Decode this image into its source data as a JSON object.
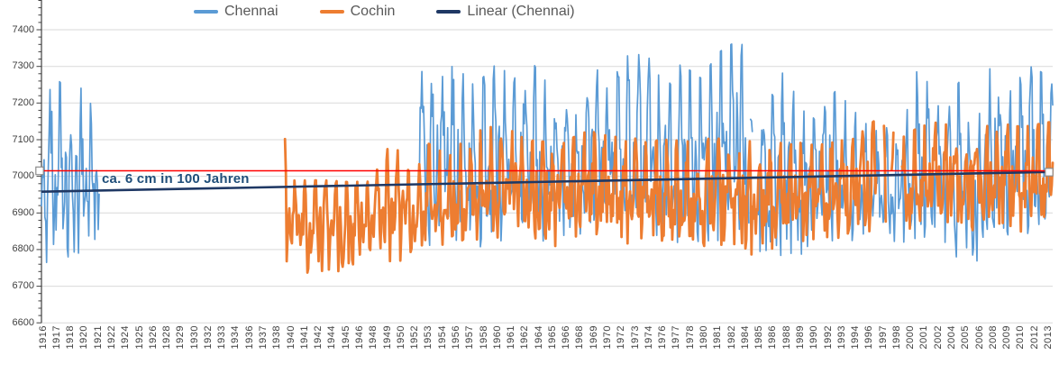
{
  "chart": {
    "legend": [
      {
        "label": "Chennai",
        "color": "#5B9BD5"
      },
      {
        "label": "Cochin",
        "color": "#ED7D31"
      },
      {
        "label": "Linear (Chennai)",
        "color": "#1F3864"
      }
    ],
    "annotation": {
      "text": "ca. 6 cm in 100 Jahren",
      "color": "#1F4E79"
    },
    "y_axis": {
      "ticks": [
        "7400",
        "7300",
        "7200",
        "7100",
        "7000",
        "6900",
        "6800",
        "6700",
        "6600"
      ]
    },
    "x_axis": {
      "labels": [
        "1916",
        "1917",
        "1918",
        "1920",
        "1921",
        "1922",
        "1924",
        "1925",
        "1926",
        "1928",
        "1929",
        "1930",
        "1932",
        "1933",
        "1934",
        "1936",
        "1937",
        "1938",
        "1940",
        "1941",
        "1942",
        "1944",
        "1945",
        "1946",
        "1948",
        "1949",
        "1950",
        "1952",
        "1953",
        "1954",
        "1956",
        "1957",
        "1958",
        "1960",
        "1961",
        "1962",
        "1964",
        "1965",
        "1966",
        "1968",
        "1969",
        "1970",
        "1972",
        "1973",
        "1974",
        "1976",
        "1977",
        "1978",
        "1980",
        "1981",
        "1982",
        "1984",
        "1985",
        "1986",
        "1988",
        "1989",
        "1990",
        "1992",
        "1993",
        "1994",
        "1996",
        "1997",
        "1998",
        "2000",
        "2001",
        "2002",
        "2004",
        "2005",
        "2006",
        "2008",
        "2009",
        "2010",
        "2012",
        "2013"
      ]
    }
  },
  "chart_data": {
    "type": "line",
    "title": "",
    "xlabel": "",
    "ylabel": "",
    "x_unit": "monthly",
    "x_start": "1916-01",
    "x_end": "2013-12",
    "ylim": [
      6600,
      7480
    ],
    "y_tick_values": [
      6600,
      6700,
      6800,
      6900,
      7000,
      7100,
      7200,
      7300,
      7400
    ],
    "grid": "horizontal",
    "legend_position": "top",
    "annotation": {
      "text": "ca. 6 cm in 100 Jahren"
    },
    "reference_line": {
      "value": 7015,
      "color": "#FF0000",
      "has_end_handles": true
    },
    "trend_line": {
      "name": "Linear (Chennai)",
      "color": "#1F3864",
      "start": {
        "year": 1916.0,
        "value": 6958
      },
      "end": {
        "year": 2014.0,
        "value": 7012
      },
      "slope_note": "ca. 6 cm in 100 Jahren"
    },
    "series": [
      {
        "name": "Chennai",
        "color": "#5B9BD5",
        "line_width": 1.7,
        "segments_months": [
          [
            0,
            67
          ],
          [
            439,
            822
          ],
          [
            824,
            826
          ],
          [
            833,
            1175
          ]
        ],
        "coverage_years": [
          [
            1916.0,
            1921.6
          ],
          [
            1952.6,
            2013.99
          ]
        ],
        "annual_envelope": [
          [
            1916.0,
            6795,
            7205
          ],
          [
            1917.0,
            6740,
            7280
          ],
          [
            1918.0,
            6745,
            7245
          ],
          [
            1919.0,
            6790,
            7090
          ],
          [
            1920.0,
            6800,
            7255
          ],
          [
            1921.6,
            6800,
            7130
          ],
          [
            1952.6,
            6860,
            7290
          ],
          [
            1954,
            6800,
            7240
          ],
          [
            1956,
            6810,
            7300
          ],
          [
            1958,
            6790,
            7240
          ],
          [
            1960,
            6830,
            7300
          ],
          [
            1962,
            6830,
            7260
          ],
          [
            1964,
            6820,
            7300
          ],
          [
            1966,
            6850,
            7190
          ],
          [
            1968,
            6830,
            7160
          ],
          [
            1969.5,
            6840,
            7310
          ],
          [
            1971,
            6860,
            7260
          ],
          [
            1973,
            6830,
            7330
          ],
          [
            1974.5,
            6830,
            7335
          ],
          [
            1976,
            6850,
            7260
          ],
          [
            1978,
            6820,
            7300
          ],
          [
            1980,
            6830,
            7260
          ],
          [
            1981.5,
            6830,
            7330
          ],
          [
            1983.7,
            6860,
            7370
          ],
          [
            1985,
            6830,
            7250
          ],
          [
            1986.5,
            6760,
            7200
          ],
          [
            1988,
            6800,
            7290
          ],
          [
            1989.5,
            6790,
            7180
          ],
          [
            1991,
            6830,
            7150
          ],
          [
            1993,
            6830,
            7230
          ],
          [
            1995,
            6830,
            7165
          ],
          [
            1997,
            6840,
            7150
          ],
          [
            1999,
            6820,
            7100
          ],
          [
            2001,
            6840,
            7300
          ],
          [
            2003,
            6840,
            7180
          ],
          [
            2005,
            6770,
            7255
          ],
          [
            2006.5,
            6770,
            7150
          ],
          [
            2008,
            6830,
            7300
          ],
          [
            2010,
            6850,
            7240
          ],
          [
            2012,
            6850,
            7300
          ],
          [
            2013.95,
            6880,
            7250
          ]
        ]
      },
      {
        "name": "Cochin",
        "color": "#ED7D31",
        "line_width": 2.8,
        "segments_months": [
          [
            283,
            970
          ],
          [
            979,
            981
          ],
          [
            988,
            990
          ],
          [
            1000,
            1175
          ]
        ],
        "coverage_years": [
          [
            1939.6,
            1996.9
          ],
          [
            1999.3,
            2013.99
          ]
        ],
        "annual_envelope": [
          [
            1939.6,
            6780,
            7100
          ],
          [
            1940.5,
            6745,
            6985
          ],
          [
            1942,
            6740,
            6985
          ],
          [
            1944,
            6735,
            6985
          ],
          [
            1946,
            6760,
            6980
          ],
          [
            1948,
            6770,
            6985
          ],
          [
            1950,
            6770,
            7095
          ],
          [
            1952,
            6780,
            6990
          ],
          [
            1953.5,
            6800,
            7085
          ],
          [
            1955,
            6800,
            7060
          ],
          [
            1957,
            6810,
            7090
          ],
          [
            1959,
            6830,
            7130
          ],
          [
            1961,
            6840,
            7130
          ],
          [
            1963,
            6830,
            7095
          ],
          [
            1965,
            6810,
            7090
          ],
          [
            1967,
            6820,
            7095
          ],
          [
            1969,
            6830,
            7120
          ],
          [
            1971,
            6830,
            7105
          ],
          [
            1973,
            6820,
            7100
          ],
          [
            1975,
            6810,
            7095
          ],
          [
            1977,
            6800,
            7095
          ],
          [
            1979,
            6800,
            7090
          ],
          [
            1981,
            6810,
            7100
          ],
          [
            1983,
            6800,
            7095
          ],
          [
            1985,
            6790,
            7090
          ],
          [
            1987,
            6800,
            7085
          ],
          [
            1989,
            6810,
            7090
          ],
          [
            1991,
            6820,
            7080
          ],
          [
            1993,
            6830,
            7090
          ],
          [
            1995,
            6840,
            7105
          ],
          [
            1996.8,
            6860,
            7150
          ],
          [
            1999.3,
            6850,
            7100
          ],
          [
            2001,
            6850,
            7130
          ],
          [
            2003,
            6860,
            7145
          ],
          [
            2005,
            6850,
            7120
          ],
          [
            2007,
            6850,
            7130
          ],
          [
            2009,
            6860,
            7140
          ],
          [
            2011,
            6850,
            7130
          ],
          [
            2013.95,
            6870,
            7145
          ]
        ]
      }
    ]
  }
}
